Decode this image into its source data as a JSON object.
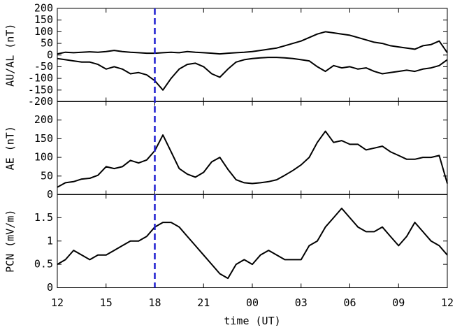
{
  "chart_data": [
    {
      "type": "line",
      "ylabel": "AU/AL (nT)",
      "xlim": [
        0,
        24
      ],
      "xticks": [
        0,
        3,
        6,
        9,
        12,
        15,
        18,
        21,
        24
      ],
      "ylim": [
        -200,
        200
      ],
      "yticks": [
        -200,
        -150,
        -100,
        -50,
        0,
        50,
        100,
        150,
        200
      ],
      "x": [
        0,
        0.5,
        1,
        1.5,
        2,
        2.5,
        3,
        3.5,
        4,
        4.5,
        5,
        5.5,
        6,
        6.5,
        7,
        7.5,
        8,
        8.5,
        9,
        9.5,
        10,
        10.5,
        11,
        11.5,
        12,
        12.5,
        13,
        13.5,
        14,
        14.5,
        15,
        15.5,
        16,
        16.5,
        17,
        17.5,
        18,
        18.5,
        19,
        19.5,
        20,
        20.5,
        21,
        21.5,
        22,
        22.5,
        23,
        23.5,
        24
      ],
      "series": [
        {
          "name": "AU",
          "color": "#000000",
          "values": [
            5,
            12,
            10,
            12,
            14,
            12,
            15,
            20,
            15,
            12,
            10,
            8,
            8,
            10,
            12,
            10,
            15,
            12,
            10,
            8,
            5,
            8,
            10,
            12,
            15,
            20,
            25,
            30,
            40,
            50,
            60,
            75,
            90,
            100,
            95,
            90,
            85,
            75,
            65,
            55,
            50,
            40,
            35,
            30,
            25,
            40,
            45,
            60,
            10
          ]
        },
        {
          "name": "AL",
          "color": "#000000",
          "values": [
            -15,
            -20,
            -25,
            -30,
            -30,
            -40,
            -60,
            -50,
            -60,
            -80,
            -75,
            -85,
            -110,
            -150,
            -100,
            -60,
            -40,
            -35,
            -50,
            -80,
            -95,
            -60,
            -30,
            -20,
            -15,
            -12,
            -10,
            -10,
            -12,
            -15,
            -20,
            -25,
            -50,
            -70,
            -45,
            -55,
            -50,
            -60,
            -55,
            -70,
            -80,
            -75,
            -70,
            -65,
            -70,
            -60,
            -55,
            -45,
            -20
          ]
        }
      ]
    },
    {
      "type": "line",
      "ylabel": "AE (nT)",
      "xlim": [
        0,
        24
      ],
      "xticks": [
        0,
        3,
        6,
        9,
        12,
        15,
        18,
        21,
        24
      ],
      "ylim": [
        0,
        250
      ],
      "yticks": [
        0,
        50,
        100,
        150,
        200
      ],
      "x": [
        0,
        0.5,
        1,
        1.5,
        2,
        2.5,
        3,
        3.5,
        4,
        4.5,
        5,
        5.5,
        6,
        6.5,
        7,
        7.5,
        8,
        8.5,
        9,
        9.5,
        10,
        10.5,
        11,
        11.5,
        12,
        12.5,
        13,
        13.5,
        14,
        14.5,
        15,
        15.5,
        16,
        16.5,
        17,
        17.5,
        18,
        18.5,
        19,
        19.5,
        20,
        20.5,
        21,
        21.5,
        22,
        22.5,
        23,
        23.5,
        24
      ],
      "series": [
        {
          "name": "AE",
          "color": "#000000",
          "values": [
            20,
            32,
            35,
            42,
            44,
            52,
            75,
            70,
            75,
            92,
            85,
            93,
            118,
            160,
            115,
            70,
            55,
            47,
            60,
            88,
            100,
            68,
            40,
            32,
            30,
            32,
            35,
            40,
            52,
            65,
            80,
            100,
            140,
            170,
            140,
            145,
            135,
            135,
            120,
            125,
            130,
            115,
            105,
            95,
            95,
            100,
            100,
            105,
            30
          ]
        }
      ]
    },
    {
      "type": "line",
      "ylabel": "PCN (mV/m)",
      "xlabel": "time (UT)",
      "xlim": [
        0,
        24
      ],
      "xticks": [
        {
          "value": 0,
          "label": "12"
        },
        {
          "value": 3,
          "label": "15"
        },
        {
          "value": 6,
          "label": "18"
        },
        {
          "value": 9,
          "label": "21"
        },
        {
          "value": 12,
          "label": "00"
        },
        {
          "value": 15,
          "label": "03"
        },
        {
          "value": 18,
          "label": "06"
        },
        {
          "value": 21,
          "label": "09"
        },
        {
          "value": 24,
          "label": "12"
        }
      ],
      "ylim": [
        0,
        2
      ],
      "yticks": [
        0,
        0.5,
        1,
        1.5
      ],
      "x": [
        0,
        0.5,
        1,
        1.5,
        2,
        2.5,
        3,
        3.5,
        4,
        4.5,
        5,
        5.5,
        6,
        6.5,
        7,
        7.5,
        8,
        8.5,
        9,
        9.5,
        10,
        10.5,
        11,
        11.5,
        12,
        12.5,
        13,
        13.5,
        14,
        14.5,
        15,
        15.5,
        16,
        16.5,
        17,
        17.5,
        18,
        18.5,
        19,
        19.5,
        20,
        20.5,
        21,
        21.5,
        22,
        22.5,
        23,
        23.5,
        24
      ],
      "series": [
        {
          "name": "PCN",
          "color": "#000000",
          "values": [
            0.5,
            0.6,
            0.8,
            0.7,
            0.6,
            0.7,
            0.7,
            0.8,
            0.9,
            1.0,
            1.0,
            1.1,
            1.3,
            1.4,
            1.4,
            1.3,
            1.1,
            0.9,
            0.7,
            0.5,
            0.3,
            0.2,
            0.5,
            0.6,
            0.5,
            0.7,
            0.8,
            0.7,
            0.6,
            0.6,
            0.6,
            0.9,
            1.0,
            1.3,
            1.5,
            1.7,
            1.5,
            1.3,
            1.2,
            1.2,
            1.3,
            1.1,
            0.9,
            1.1,
            1.4,
            1.2,
            1.0,
            0.9,
            0.7
          ]
        }
      ]
    }
  ],
  "marker_line": {
    "x": 6,
    "color": "#1f1fd0"
  }
}
